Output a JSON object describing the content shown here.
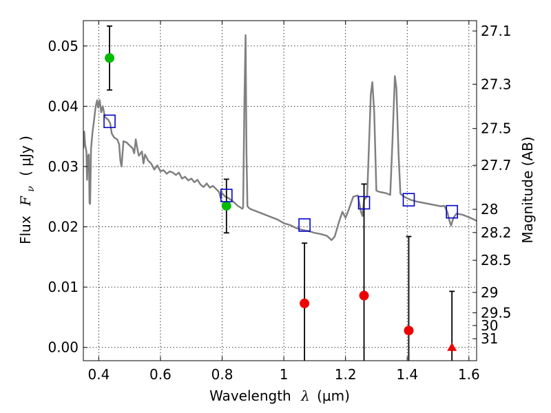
{
  "chart_data": {
    "type": "scatter",
    "xlabel": {
      "prefix": "Wavelength",
      "symbol": "λ",
      "unit": "(μm)"
    },
    "ylabel": {
      "prefix": "Flux",
      "symbol": "F",
      "subscript": "ν",
      "unit": "( μJy )"
    },
    "y2label": "Magnitude (AB)",
    "xlim": [
      0.35,
      1.625
    ],
    "ylim": [
      -0.0022,
      0.0542
    ],
    "x_ticks": [
      0.4,
      0.6,
      0.8,
      1.0,
      1.2,
      1.4,
      1.6
    ],
    "x_tick_labels": [
      "0.4",
      "0.6",
      "0.8",
      "1",
      "1.2",
      "1.4",
      "1.6"
    ],
    "y_ticks": [
      0.0,
      0.01,
      0.02,
      0.03,
      0.04,
      0.05
    ],
    "y_tick_labels": [
      "0.00",
      "0.01",
      "0.02",
      "0.03",
      "0.04",
      "0.05"
    ],
    "mag_ticks": [
      27.1,
      27.3,
      27.5,
      27.7,
      28,
      28.2,
      28.5,
      29,
      29.5,
      30,
      31
    ],
    "mag_tick_labels": [
      "27.1",
      "27.3",
      "27.5",
      "27.7",
      "28",
      "28.2",
      "28.5",
      "29",
      "29.5",
      "30",
      "31"
    ],
    "grid": true,
    "colors": {
      "model": "#808080",
      "detection": "#00bb00",
      "upper_limit": "#ee0000",
      "model_photometry": "#0000cc",
      "errorbar": "#000000"
    },
    "series": [
      {
        "kind": "sed_model_line",
        "points": [
          [
            0.35,
            0.033
          ],
          [
            0.353,
            0.0358
          ],
          [
            0.356,
            0.0335
          ],
          [
            0.36,
            0.0325
          ],
          [
            0.362,
            0.0278
          ],
          [
            0.365,
            0.0318
          ],
          [
            0.368,
            0.032
          ],
          [
            0.37,
            0.024
          ],
          [
            0.372,
            0.0238
          ],
          [
            0.375,
            0.033
          ],
          [
            0.38,
            0.0358
          ],
          [
            0.385,
            0.0378
          ],
          [
            0.39,
            0.04
          ],
          [
            0.395,
            0.041
          ],
          [
            0.398,
            0.0398
          ],
          [
            0.403,
            0.041
          ],
          [
            0.408,
            0.039
          ],
          [
            0.413,
            0.04
          ],
          [
            0.42,
            0.0382
          ],
          [
            0.43,
            0.0378
          ],
          [
            0.437,
            0.0372
          ],
          [
            0.442,
            0.0355
          ],
          [
            0.45,
            0.0348
          ],
          [
            0.46,
            0.0345
          ],
          [
            0.466,
            0.0337
          ],
          [
            0.47,
            0.031
          ],
          [
            0.474,
            0.03
          ],
          [
            0.48,
            0.0342
          ],
          [
            0.49,
            0.034
          ],
          [
            0.5,
            0.0335
          ],
          [
            0.51,
            0.033
          ],
          [
            0.515,
            0.0322
          ],
          [
            0.52,
            0.0345
          ],
          [
            0.525,
            0.033
          ],
          [
            0.53,
            0.0318
          ],
          [
            0.54,
            0.0325
          ],
          [
            0.545,
            0.0305
          ],
          [
            0.55,
            0.032
          ],
          [
            0.56,
            0.031
          ],
          [
            0.57,
            0.0305
          ],
          [
            0.58,
            0.0295
          ],
          [
            0.59,
            0.0302
          ],
          [
            0.6,
            0.0292
          ],
          [
            0.61,
            0.0294
          ],
          [
            0.62,
            0.0288
          ],
          [
            0.63,
            0.0292
          ],
          [
            0.64,
            0.029
          ],
          [
            0.65,
            0.0286
          ],
          [
            0.66,
            0.029
          ],
          [
            0.67,
            0.028
          ],
          [
            0.68,
            0.0283
          ],
          [
            0.69,
            0.0277
          ],
          [
            0.7,
            0.028
          ],
          [
            0.71,
            0.0274
          ],
          [
            0.72,
            0.0278
          ],
          [
            0.73,
            0.027
          ],
          [
            0.74,
            0.0266
          ],
          [
            0.75,
            0.0272
          ],
          [
            0.76,
            0.0265
          ],
          [
            0.77,
            0.0268
          ],
          [
            0.78,
            0.0263
          ],
          [
            0.79,
            0.0258
          ],
          [
            0.795,
            0.0248
          ],
          [
            0.8,
            0.0256
          ],
          [
            0.81,
            0.025
          ],
          [
            0.82,
            0.0248
          ],
          [
            0.83,
            0.0244
          ],
          [
            0.84,
            0.024
          ],
          [
            0.85,
            0.0235
          ],
          [
            0.86,
            0.0232
          ],
          [
            0.865,
            0.023
          ],
          [
            0.868,
            0.0232
          ],
          [
            0.872,
            0.04
          ],
          [
            0.876,
            0.0518
          ],
          [
            0.879,
            0.032
          ],
          [
            0.882,
            0.0234
          ],
          [
            0.89,
            0.023
          ],
          [
            0.9,
            0.0228
          ],
          [
            0.92,
            0.0224
          ],
          [
            0.94,
            0.022
          ],
          [
            0.96,
            0.0216
          ],
          [
            0.98,
            0.0212
          ],
          [
            1.0,
            0.0206
          ],
          [
            1.02,
            0.0203
          ],
          [
            1.04,
            0.0198
          ],
          [
            1.06,
            0.0195
          ],
          [
            1.08,
            0.0193
          ],
          [
            1.1,
            0.019
          ],
          [
            1.12,
            0.0188
          ],
          [
            1.14,
            0.0185
          ],
          [
            1.155,
            0.0178
          ],
          [
            1.165,
            0.0184
          ],
          [
            1.18,
            0.021
          ],
          [
            1.19,
            0.0225
          ],
          [
            1.2,
            0.0215
          ],
          [
            1.21,
            0.0228
          ],
          [
            1.225,
            0.025
          ],
          [
            1.24,
            0.0252
          ],
          [
            1.25,
            0.0225
          ],
          [
            1.255,
            0.0218
          ],
          [
            1.26,
            0.0245
          ],
          [
            1.27,
            0.025
          ],
          [
            1.275,
            0.032
          ],
          [
            1.282,
            0.042
          ],
          [
            1.287,
            0.044
          ],
          [
            1.293,
            0.039
          ],
          [
            1.3,
            0.026
          ],
          [
            1.31,
            0.0258
          ],
          [
            1.33,
            0.0256
          ],
          [
            1.345,
            0.0253
          ],
          [
            1.352,
            0.034
          ],
          [
            1.36,
            0.045
          ],
          [
            1.365,
            0.043
          ],
          [
            1.372,
            0.032
          ],
          [
            1.378,
            0.0255
          ],
          [
            1.39,
            0.025
          ],
          [
            1.41,
            0.0245
          ],
          [
            1.43,
            0.0242
          ],
          [
            1.45,
            0.024
          ],
          [
            1.47,
            0.0238
          ],
          [
            1.49,
            0.0236
          ],
          [
            1.51,
            0.0234
          ],
          [
            1.52,
            0.0235
          ],
          [
            1.53,
            0.0225
          ],
          [
            1.537,
            0.021
          ],
          [
            1.542,
            0.0202
          ],
          [
            1.55,
            0.0215
          ],
          [
            1.56,
            0.0222
          ],
          [
            1.58,
            0.022
          ],
          [
            1.6,
            0.0216
          ],
          [
            1.625,
            0.021
          ]
        ]
      },
      {
        "kind": "detection",
        "marker": "circle",
        "points": [
          {
            "x": 0.435,
            "y": 0.048,
            "yerr_low": 0.0427,
            "yerr_high": 0.0533
          },
          {
            "x": 0.814,
            "y": 0.0235,
            "yerr_low": 0.019,
            "yerr_high": 0.0279
          }
        ]
      },
      {
        "kind": "upper_limit",
        "points": [
          {
            "x": 1.067,
            "y": 0.0073,
            "marker": "circle",
            "yerr_low": -0.0022,
            "yerr_high": 0.0173
          },
          {
            "x": 1.26,
            "y": 0.0086,
            "marker": "circle",
            "yerr_low": -0.0022,
            "yerr_high": 0.0271
          },
          {
            "x": 1.405,
            "y": 0.0028,
            "marker": "circle",
            "yerr_low": -0.0022,
            "yerr_high": 0.0184
          },
          {
            "x": 1.545,
            "y": 0.0,
            "marker": "triangle",
            "yerr_low": -0.0022,
            "yerr_high": 0.0093
          }
        ]
      },
      {
        "kind": "model_photometry",
        "marker": "square",
        "points": [
          {
            "x": 0.435,
            "y": 0.0375
          },
          {
            "x": 0.814,
            "y": 0.0252
          },
          {
            "x": 1.067,
            "y": 0.0203
          },
          {
            "x": 1.26,
            "y": 0.024
          },
          {
            "x": 1.405,
            "y": 0.0245
          },
          {
            "x": 1.545,
            "y": 0.0225
          }
        ]
      }
    ]
  }
}
